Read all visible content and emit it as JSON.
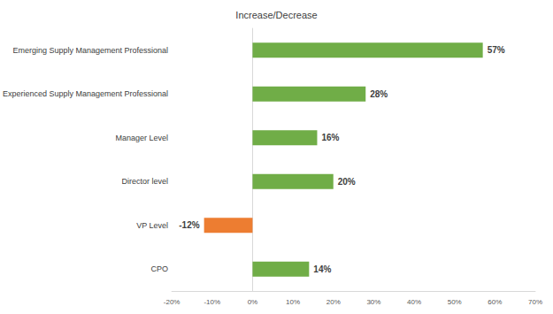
{
  "chart_data": {
    "type": "bar",
    "orientation": "horizontal",
    "title": "Increase/Decrease",
    "categories": [
      "Emerging Supply Management Professional",
      "Experienced Supply Management Professional",
      "Manager Level",
      "Director level",
      "VP Level",
      "CPO"
    ],
    "values": [
      57,
      28,
      16,
      20,
      -12,
      14
    ],
    "value_labels": [
      "57%",
      "28%",
      "16%",
      "20%",
      "-12%",
      "14%"
    ],
    "colors": [
      "#70ad47",
      "#70ad47",
      "#70ad47",
      "#70ad47",
      "#ed7d31",
      "#70ad47"
    ],
    "xlim": [
      -20,
      70
    ],
    "xticks": [
      {
        "value": -20,
        "label": "-20%"
      },
      {
        "value": -10,
        "label": "-10%"
      },
      {
        "value": 0,
        "label": "0%"
      },
      {
        "value": 10,
        "label": "10%"
      },
      {
        "value": 20,
        "label": "20%"
      },
      {
        "value": 30,
        "label": "30%"
      },
      {
        "value": 40,
        "label": "40%"
      },
      {
        "value": 50,
        "label": "50%"
      },
      {
        "value": 60,
        "label": "60%"
      },
      {
        "value": 70,
        "label": "70%"
      }
    ],
    "grid": false,
    "data_labels": true
  }
}
